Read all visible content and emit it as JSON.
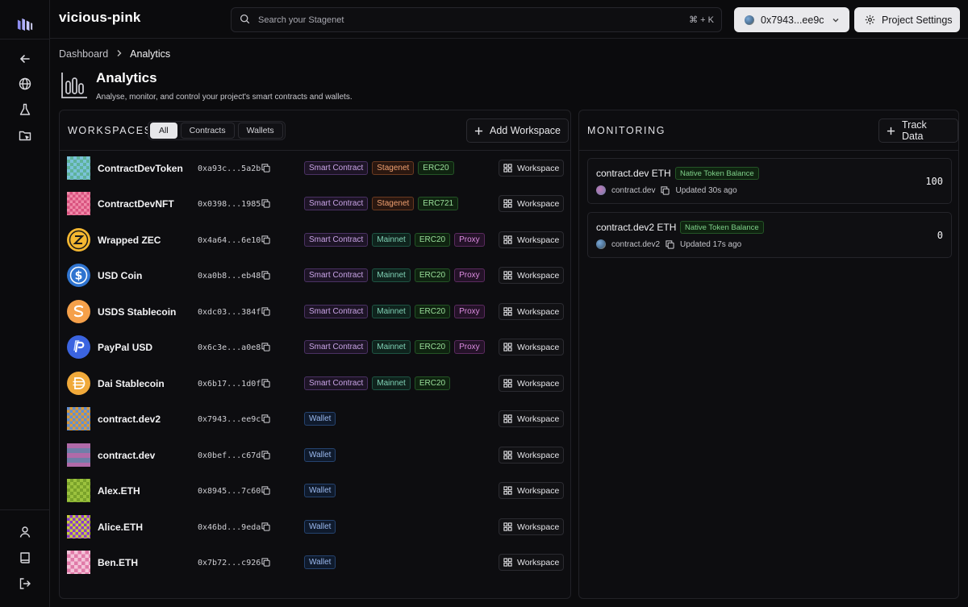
{
  "project": {
    "name": "vicious-pink"
  },
  "search": {
    "placeholder": "Search your Stagenet",
    "shortcut": "⌘ + K"
  },
  "wallet": {
    "address": "0x7943...ee9c"
  },
  "settings": {
    "label": "Project Settings"
  },
  "breadcrumb": {
    "root": "Dashboard",
    "current": "Analytics"
  },
  "header": {
    "title": "Analytics",
    "subtitle": "Analyse, monitor, and control your project's smart contracts and wallets."
  },
  "workspaces": {
    "title": "WORKSPACES",
    "filters": [
      "All",
      "Contracts",
      "Wallets"
    ],
    "active_filter": "All",
    "add_label": "Add Workspace",
    "row_button": "Workspace",
    "rows": [
      {
        "name": "ContractDevToken",
        "address": "0xa93c...5a2b",
        "tags": [
          "Smart Contract",
          "Stagenet",
          "ERC20"
        ]
      },
      {
        "name": "ContractDevNFT",
        "address": "0x0398...1985",
        "tags": [
          "Smart Contract",
          "Stagenet",
          "ERC721"
        ]
      },
      {
        "name": "Wrapped ZEC",
        "address": "0x4a64...6e10",
        "tags": [
          "Smart Contract",
          "Mainnet",
          "ERC20",
          "Proxy"
        ]
      },
      {
        "name": "USD Coin",
        "address": "0xa0b8...eb48",
        "tags": [
          "Smart Contract",
          "Mainnet",
          "ERC20",
          "Proxy"
        ]
      },
      {
        "name": "USDS Stablecoin",
        "address": "0xdc03...384f",
        "tags": [
          "Smart Contract",
          "Mainnet",
          "ERC20",
          "Proxy"
        ]
      },
      {
        "name": "PayPal USD",
        "address": "0x6c3e...a0e8",
        "tags": [
          "Smart Contract",
          "Mainnet",
          "ERC20",
          "Proxy"
        ]
      },
      {
        "name": "Dai Stablecoin",
        "address": "0x6b17...1d0f",
        "tags": [
          "Smart Contract",
          "Mainnet",
          "ERC20"
        ]
      },
      {
        "name": "contract.dev2",
        "address": "0x7943...ee9c",
        "tags": [
          "Wallet"
        ]
      },
      {
        "name": "contract.dev",
        "address": "0x0bef...c67d",
        "tags": [
          "Wallet"
        ]
      },
      {
        "name": "Alex.ETH",
        "address": "0x8945...7c60",
        "tags": [
          "Wallet"
        ]
      },
      {
        "name": "Alice.ETH",
        "address": "0x46bd...9eda",
        "tags": [
          "Wallet"
        ]
      },
      {
        "name": "Ben.ETH",
        "address": "0x7b72...c926",
        "tags": [
          "Wallet"
        ]
      }
    ]
  },
  "monitoring": {
    "title": "MONITORING",
    "track_label": "Track Data",
    "cards": [
      {
        "title": "contract.dev ETH",
        "badge": "Native Token Balance",
        "source": "contract.dev",
        "updated": "Updated 30s ago",
        "value": "100"
      },
      {
        "title": "contract.dev2 ETH",
        "badge": "Native Token Balance",
        "source": "contract.dev2",
        "updated": "Updated 17s ago",
        "value": "0"
      }
    ]
  },
  "colors": {
    "background": "#0b0b0d",
    "panel": "#0d0d10",
    "border": "#222227",
    "accent_light": "#e9e9ec"
  }
}
